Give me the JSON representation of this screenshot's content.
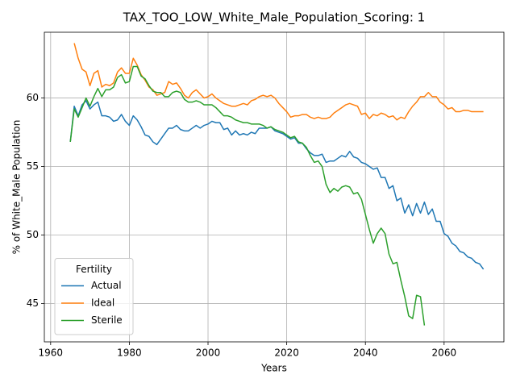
{
  "chart_data": {
    "type": "line",
    "title": "TAX_TOO_LOW_White_Male_Population_Scoring: 1",
    "x_label": "Years",
    "y_label": "% of White_Male Population",
    "legend_title": "Fertility",
    "legend": "lower left",
    "grid": true,
    "x": [
      1965,
      1966,
      1967,
      1968,
      1969,
      1970,
      1971,
      1972,
      1973,
      1974,
      1975,
      1976,
      1977,
      1978,
      1979,
      1980,
      1981,
      1982,
      1983,
      1984,
      1985,
      1986,
      1987,
      1988,
      1989,
      1990,
      1991,
      1992,
      1993,
      1994,
      1995,
      1996,
      1997,
      1998,
      1999,
      2000,
      2001,
      2002,
      2003,
      2004,
      2005,
      2006,
      2007,
      2008,
      2009,
      2010,
      2011,
      2012,
      2013,
      2014,
      2015,
      2016,
      2017,
      2018,
      2019,
      2020,
      2021,
      2022,
      2023,
      2024,
      2025,
      2026,
      2027,
      2028,
      2029,
      2030,
      2031,
      2032,
      2033,
      2034,
      2035,
      2036,
      2037,
      2038,
      2039,
      2040,
      2041,
      2042,
      2043,
      2044,
      2045,
      2046,
      2047,
      2048,
      2049,
      2050,
      2051,
      2052,
      2053,
      2054,
      2055,
      2056,
      2057,
      2058,
      2059,
      2060,
      2061,
      2062,
      2063,
      2064,
      2065,
      2066,
      2067,
      2068,
      2069,
      2070
    ],
    "series": [
      {
        "name": "Actual",
        "color": "#1f77b4",
        "values": [
          56.8,
          59.4,
          58.7,
          59.5,
          59.8,
          59.2,
          59.5,
          59.7,
          58.7,
          58.7,
          58.6,
          58.3,
          58.4,
          58.8,
          58.3,
          58.0,
          58.7,
          58.4,
          57.9,
          57.3,
          57.2,
          56.8,
          56.6,
          57.0,
          57.4,
          57.8,
          57.8,
          58.0,
          57.7,
          57.6,
          57.6,
          57.8,
          58.0,
          57.8,
          58.0,
          58.1,
          58.3,
          58.2,
          58.2,
          57.7,
          57.8,
          57.3,
          57.6,
          57.3,
          57.4,
          57.3,
          57.5,
          57.4,
          57.8,
          57.8,
          57.8,
          57.9,
          57.6,
          57.5,
          57.4,
          57.2,
          57.0,
          57.1,
          56.7,
          56.7,
          56.3,
          56.0,
          55.8,
          55.8,
          55.9,
          55.3,
          55.4,
          55.4,
          55.6,
          55.8,
          55.7,
          56.1,
          55.7,
          55.6,
          55.3,
          55.2,
          55.0,
          54.8,
          54.9,
          54.2,
          54.2,
          53.4,
          53.6,
          52.5,
          52.7,
          51.6,
          52.2,
          51.4,
          52.3,
          51.6,
          52.4,
          51.5,
          51.9,
          51.0,
          51.0,
          50.1,
          49.9,
          49.4,
          49.2,
          48.8,
          48.7,
          48.4,
          48.3,
          48.0,
          47.9,
          47.5
        ]
      },
      {
        "name": "Ideal",
        "color": "#ff7f0e",
        "values": [
          null,
          64.0,
          62.9,
          62.1,
          61.9,
          60.9,
          61.8,
          62.0,
          60.8,
          61.0,
          60.9,
          61.1,
          61.9,
          62.2,
          61.8,
          61.8,
          62.9,
          62.4,
          61.7,
          61.3,
          60.8,
          60.6,
          60.2,
          60.3,
          60.4,
          61.2,
          61.0,
          61.1,
          60.7,
          60.2,
          60.0,
          60.4,
          60.6,
          60.3,
          60.0,
          60.1,
          60.3,
          60.0,
          59.8,
          59.6,
          59.5,
          59.4,
          59.4,
          59.5,
          59.6,
          59.5,
          59.8,
          59.9,
          60.1,
          60.2,
          60.1,
          60.2,
          60.0,
          59.6,
          59.3,
          59.0,
          58.6,
          58.7,
          58.7,
          58.8,
          58.8,
          58.6,
          58.5,
          58.6,
          58.5,
          58.5,
          58.6,
          58.9,
          59.1,
          59.3,
          59.5,
          59.6,
          59.5,
          59.4,
          58.8,
          58.9,
          58.5,
          58.8,
          58.7,
          58.9,
          58.8,
          58.6,
          58.7,
          58.4,
          58.6,
          58.5,
          59.0,
          59.4,
          59.7,
          60.1,
          60.1,
          60.4,
          60.1,
          60.1,
          59.7,
          59.5,
          59.2,
          59.3,
          59.0,
          59.0,
          59.1,
          59.1,
          59.0,
          59.0,
          59.0,
          59.0
        ]
      },
      {
        "name": "Sterile",
        "color": "#2ca02c",
        "values": [
          56.8,
          59.2,
          58.6,
          59.3,
          60.0,
          59.4,
          60.1,
          60.7,
          60.1,
          60.6,
          60.6,
          60.8,
          61.5,
          61.7,
          61.1,
          61.2,
          62.3,
          62.3,
          61.6,
          61.4,
          60.9,
          60.5,
          60.4,
          60.4,
          60.1,
          60.1,
          60.4,
          60.5,
          60.4,
          59.9,
          59.7,
          59.7,
          59.8,
          59.7,
          59.5,
          59.5,
          59.5,
          59.3,
          59.0,
          58.7,
          58.7,
          58.6,
          58.4,
          58.3,
          58.2,
          58.2,
          58.1,
          58.1,
          58.1,
          58.0,
          57.8,
          57.9,
          57.7,
          57.6,
          57.5,
          57.3,
          57.1,
          57.2,
          56.8,
          56.7,
          56.4,
          55.8,
          55.3,
          55.4,
          55.0,
          53.7,
          53.1,
          53.4,
          53.2,
          53.5,
          53.6,
          53.5,
          53.0,
          53.1,
          52.6,
          51.5,
          50.4,
          49.4,
          50.1,
          50.5,
          50.1,
          48.6,
          47.9,
          48.0,
          46.7,
          45.5,
          44.1,
          43.9,
          45.6,
          45.5,
          43.4,
          null,
          null,
          null,
          null,
          null,
          null,
          null,
          null,
          null,
          null,
          null,
          null,
          null,
          null,
          null
        ]
      }
    ],
    "xlim": [
      1958.4,
      2075.2
    ],
    "ylim": [
      42.2,
      64.8
    ],
    "xticks": [
      1960,
      1980,
      2000,
      2020,
      2040,
      2060
    ],
    "yticks": [
      45,
      50,
      55,
      60
    ]
  }
}
